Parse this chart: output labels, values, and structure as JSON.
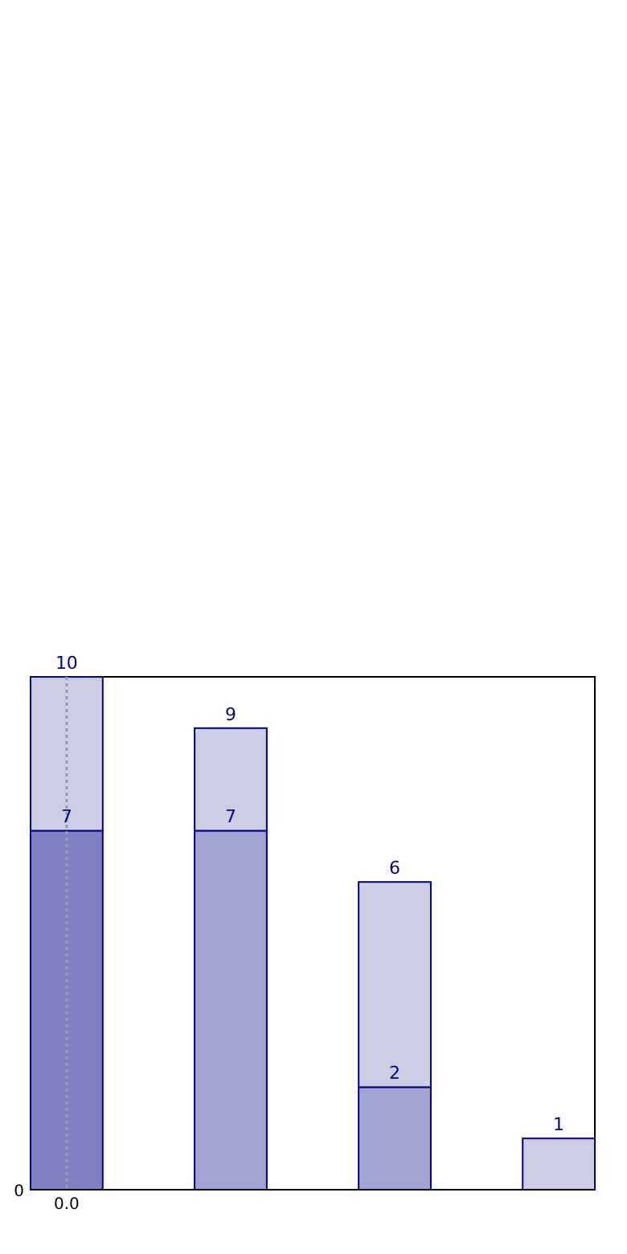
{
  "chart_data": {
    "type": "bar",
    "categories": [
      null,
      null,
      null,
      null
    ],
    "ylim": [
      0,
      10
    ],
    "stacked": true,
    "series": [
      {
        "colors": [
          "#8080c0",
          "#a3a3d1",
          "#a3a3d1",
          "#a3a3d1"
        ],
        "values": [
          7,
          7,
          2,
          0
        ],
        "value_labels": [
          "7",
          "7",
          "2",
          null
        ]
      },
      {
        "color": "#cdcde5",
        "values": [
          3,
          2,
          4,
          1
        ]
      }
    ],
    "totals": [
      "10",
      "9",
      "6",
      "1"
    ],
    "annotations": [
      "0",
      "0.0"
    ]
  }
}
